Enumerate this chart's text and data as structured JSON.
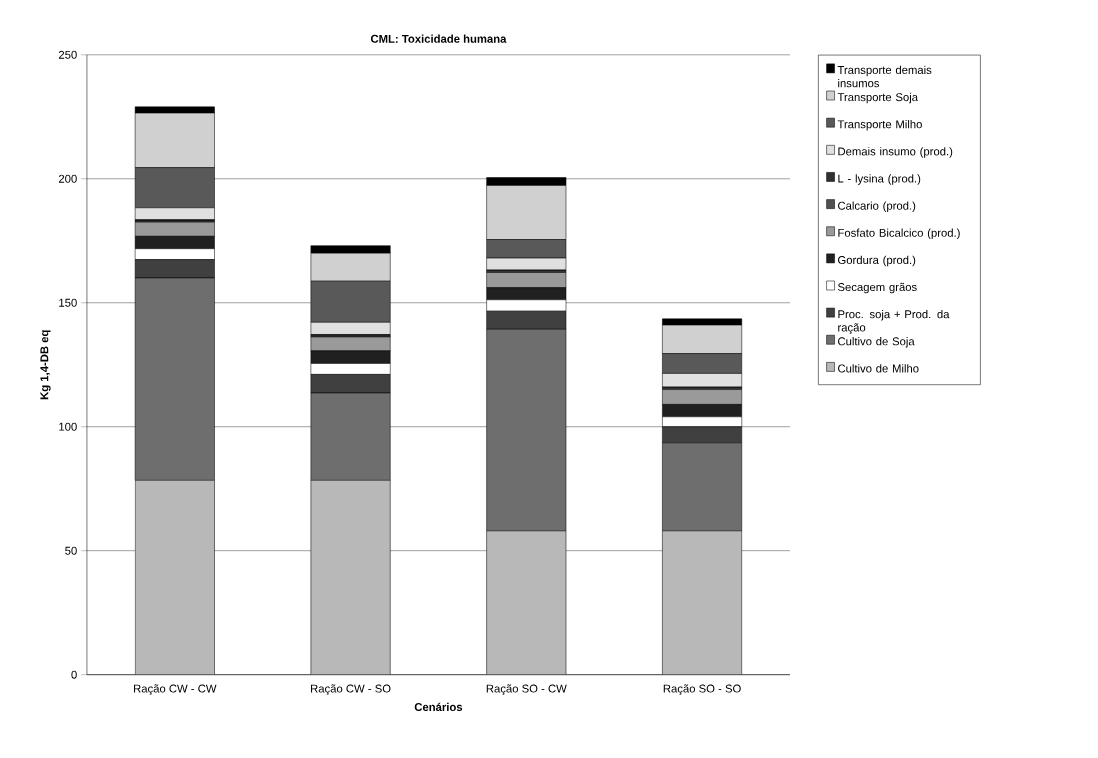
{
  "chart_data": {
    "type": "bar",
    "stacked": true,
    "title": "CML: Toxicidade humana",
    "xlabel": "Cenários",
    "ylabel": "Kg 1,4-DB eq",
    "categories": [
      "Ração CW - CW",
      "Ração CW - SO",
      "Ração SO - CW",
      "Ração SO - SO"
    ],
    "ylim": [
      0,
      250
    ],
    "yticks": [
      0,
      50,
      100,
      150,
      200,
      250
    ],
    "grid": "y",
    "legend": "right",
    "series": [
      {
        "name": "Cultivo de Milho",
        "color": "#b8b8b8",
        "values": [
          78.4,
          78.4,
          58,
          58
        ]
      },
      {
        "name": "Cultivo de Soja",
        "color": "#6e6e6e",
        "values": [
          81.6,
          35.2,
          81.3,
          35.5
        ]
      },
      {
        "name": "Proc. soja + Prod. da ração",
        "color": "#404040",
        "values": [
          7.4,
          7.5,
          7.3,
          6.5
        ]
      },
      {
        "name": "Secagem grãos",
        "color": "#ffffff",
        "values": [
          4.4,
          4.4,
          4.6,
          4
        ]
      },
      {
        "name": "Gordura (prod.)",
        "color": "#202020",
        "values": [
          5,
          5.1,
          4.9,
          5
        ]
      },
      {
        "name": "Fosfato Bicalcico (prod.)",
        "color": "#9a9a9a",
        "values": [
          5.7,
          5.6,
          6.1,
          6
        ]
      },
      {
        "name": "Calcario (prod.)",
        "color": "#505050",
        "values": [
          0.5,
          0.5,
          0.5,
          0.5
        ]
      },
      {
        "name": "L - lysina (prod.)",
        "color": "#303030",
        "values": [
          0.5,
          0.5,
          0.5,
          0.5
        ]
      },
      {
        "name": "Demais insumo (prod.)",
        "color": "#e0e0e0",
        "values": [
          4.8,
          4.9,
          4.8,
          5.5
        ]
      },
      {
        "name": "Transporte Milho",
        "color": "#595959",
        "values": [
          16.2,
          16.6,
          7.5,
          8
        ]
      },
      {
        "name": "Transporte Soja",
        "color": "#d0d0d0",
        "values": [
          22,
          11.3,
          21.8,
          11.5
        ]
      },
      {
        "name": "Transporte demais insumos",
        "color": "#000000",
        "values": [
          2.5,
          3,
          3.2,
          2.5
        ]
      }
    ]
  }
}
